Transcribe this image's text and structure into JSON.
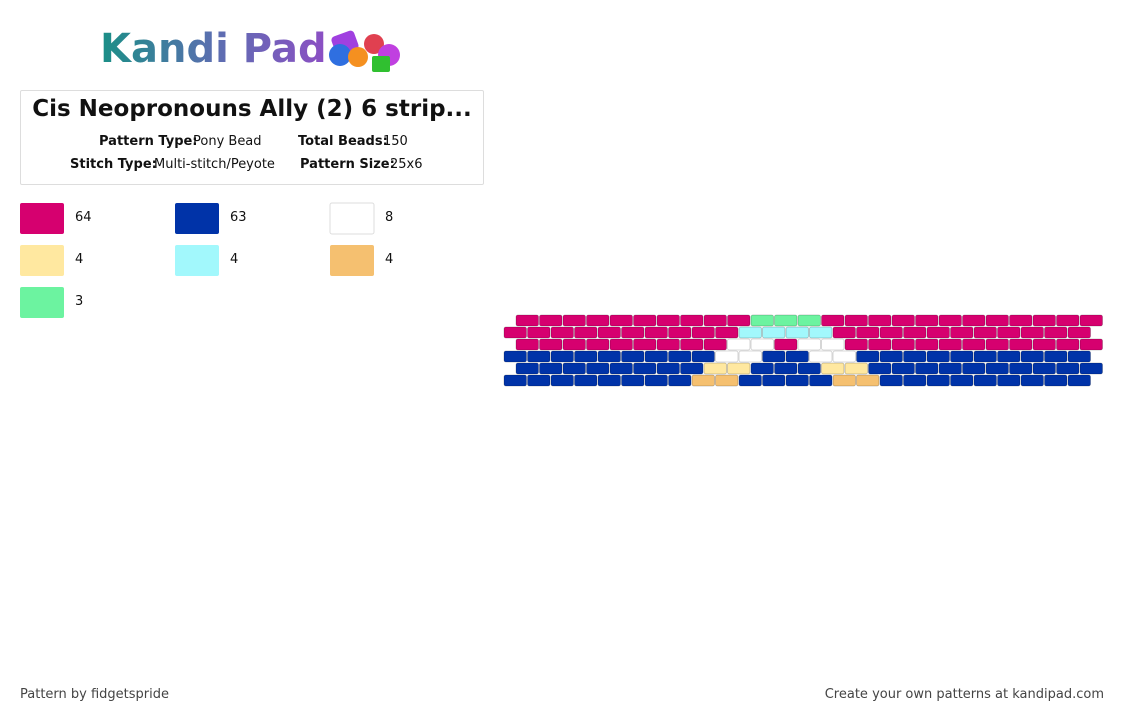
{
  "header": {
    "logo": "Kandi Pad",
    "title": "Cis Neopronouns Ally (2) 6 strip...",
    "info": [
      {
        "label": "Pattern Type:",
        "value": "Pony Bead"
      },
      {
        "label": "Total Beads:",
        "value": 150
      },
      {
        "label": "Stitch Type:",
        "value": "Multi-stitch/Peyote"
      },
      {
        "label": "Pattern Size:",
        "value": "25x6"
      }
    ]
  },
  "palette": [
    {
      "color": "#d6006f",
      "count": 64
    },
    {
      "color": "#0033a8",
      "count": 63
    },
    {
      "color": "#ffffff",
      "count": 8
    },
    {
      "color": "#ffe8a0",
      "count": 4
    },
    {
      "color": "#a2f8fc",
      "count": 4
    },
    {
      "color": "#f5c070",
      "count": 4
    },
    {
      "color": "#6cf3a0",
      "count": 3
    }
  ],
  "pattern": {
    "rows": [
      [
        "#d6006f",
        "#d6006f",
        "#d6006f",
        "#d6006f",
        "#d6006f",
        "#d6006f",
        "#d6006f",
        "#d6006f",
        "#d6006f",
        "#d6006f",
        "#6cf3a0",
        "#6cf3a0",
        "#6cf3a0",
        "#d6006f",
        "#d6006f",
        "#d6006f",
        "#d6006f",
        "#d6006f",
        "#d6006f",
        "#d6006f",
        "#d6006f",
        "#d6006f",
        "#d6006f",
        "#d6006f",
        "#d6006f"
      ],
      [
        "#d6006f",
        "#d6006f",
        "#d6006f",
        "#d6006f",
        "#d6006f",
        "#d6006f",
        "#d6006f",
        "#d6006f",
        "#d6006f",
        "#d6006f",
        "#a2f8fc",
        "#a2f8fc",
        "#a2f8fc",
        "#a2f8fc",
        "#d6006f",
        "#d6006f",
        "#d6006f",
        "#d6006f",
        "#d6006f",
        "#d6006f",
        "#d6006f",
        "#d6006f",
        "#d6006f",
        "#d6006f",
        "#d6006f"
      ],
      [
        "#d6006f",
        "#d6006f",
        "#d6006f",
        "#d6006f",
        "#d6006f",
        "#d6006f",
        "#d6006f",
        "#d6006f",
        "#d6006f",
        "#ffffff",
        "#ffffff",
        "#d6006f",
        "#ffffff",
        "#ffffff",
        "#d6006f",
        "#d6006f",
        "#d6006f",
        "#d6006f",
        "#d6006f",
        "#d6006f",
        "#d6006f",
        "#d6006f",
        "#d6006f",
        "#d6006f",
        "#d6006f"
      ],
      [
        "#0033a8",
        "#0033a8",
        "#0033a8",
        "#0033a8",
        "#0033a8",
        "#0033a8",
        "#0033a8",
        "#0033a8",
        "#0033a8",
        "#ffffff",
        "#ffffff",
        "#0033a8",
        "#0033a8",
        "#ffffff",
        "#ffffff",
        "#0033a8",
        "#0033a8",
        "#0033a8",
        "#0033a8",
        "#0033a8",
        "#0033a8",
        "#0033a8",
        "#0033a8",
        "#0033a8",
        "#0033a8"
      ],
      [
        "#0033a8",
        "#0033a8",
        "#0033a8",
        "#0033a8",
        "#0033a8",
        "#0033a8",
        "#0033a8",
        "#0033a8",
        "#ffe8a0",
        "#ffe8a0",
        "#0033a8",
        "#0033a8",
        "#0033a8",
        "#ffe8a0",
        "#ffe8a0",
        "#0033a8",
        "#0033a8",
        "#0033a8",
        "#0033a8",
        "#0033a8",
        "#0033a8",
        "#0033a8",
        "#0033a8",
        "#0033a8",
        "#0033a8"
      ],
      [
        "#0033a8",
        "#0033a8",
        "#0033a8",
        "#0033a8",
        "#0033a8",
        "#0033a8",
        "#0033a8",
        "#0033a8",
        "#f5c070",
        "#f5c070",
        "#0033a8",
        "#0033a8",
        "#0033a8",
        "#0033a8",
        "#f5c070",
        "#f5c070",
        "#0033a8",
        "#0033a8",
        "#0033a8",
        "#0033a8",
        "#0033a8",
        "#0033a8",
        "#0033a8",
        "#0033a8",
        "#0033a8"
      ]
    ]
  },
  "footer": {
    "credit": "Pattern by fidgetspride",
    "cta": "Create your own patterns at kandipad.com"
  }
}
